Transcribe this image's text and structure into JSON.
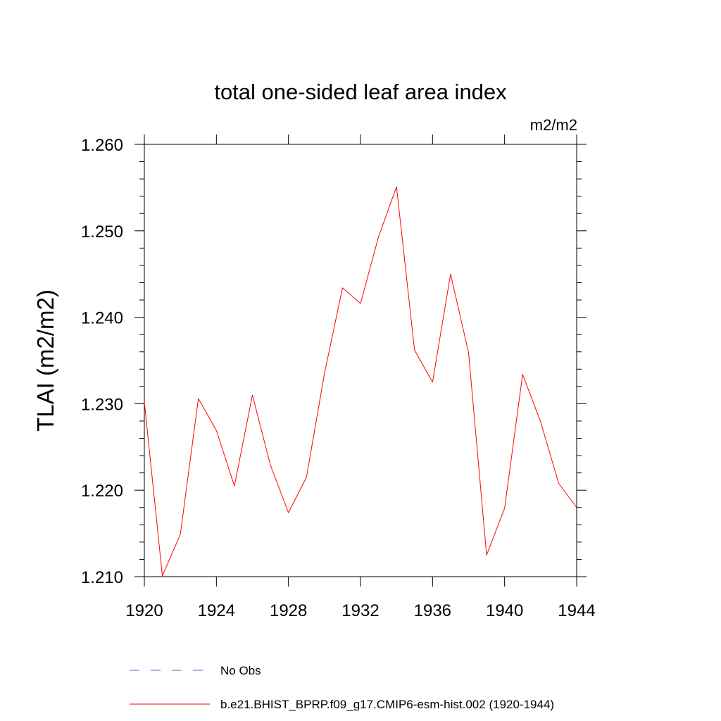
{
  "chart_data": {
    "type": "line",
    "title": "total one-sided leaf area index",
    "units_label": "m2/m2",
    "ylabel": "TLAI  (m2/m2)",
    "xlabel": "",
    "xlim": [
      1920,
      1944
    ],
    "ylim": [
      1.21,
      1.26
    ],
    "x_ticks": [
      1920,
      1924,
      1928,
      1932,
      1936,
      1940,
      1944
    ],
    "x_tick_labels": [
      "1920",
      "1924",
      "1928",
      "1932",
      "1936",
      "1940",
      "1944"
    ],
    "y_ticks": [
      1.21,
      1.22,
      1.23,
      1.24,
      1.25,
      1.26
    ],
    "y_tick_labels": [
      "1.210",
      "1.220",
      "1.230",
      "1.240",
      "1.250",
      "1.260"
    ],
    "grid": false,
    "legend_position": "bottom",
    "series": [
      {
        "name": "b.e21.BHIST_BPRP.f09_g17.CMIP6-esm-hist.002 (1920-1944)",
        "color": "#ff0000",
        "dash": "solid",
        "x": [
          1920,
          1921,
          1922,
          1923,
          1924,
          1925,
          1926,
          1927,
          1928,
          1929,
          1930,
          1931,
          1932,
          1933,
          1934,
          1935,
          1936,
          1937,
          1938,
          1939,
          1940,
          1941,
          1942,
          1943,
          1944
        ],
        "y": [
          1.2302,
          1.2101,
          1.2149,
          1.2306,
          1.2269,
          1.2205,
          1.231,
          1.2229,
          1.2174,
          1.2215,
          1.2335,
          1.2434,
          1.2416,
          1.2493,
          1.2551,
          1.2362,
          1.2325,
          1.245,
          1.2359,
          1.2125,
          1.2179,
          1.2334,
          1.2279,
          1.2208,
          1.218
        ]
      }
    ],
    "legend": [
      {
        "label": "No Obs",
        "color": "#6a5acd",
        "dash": "dashed"
      },
      {
        "label": "b.e21.BHIST_BPRP.f09_g17.CMIP6-esm-hist.002 (1920-1944)",
        "color": "#ff0000",
        "dash": "solid"
      }
    ]
  }
}
